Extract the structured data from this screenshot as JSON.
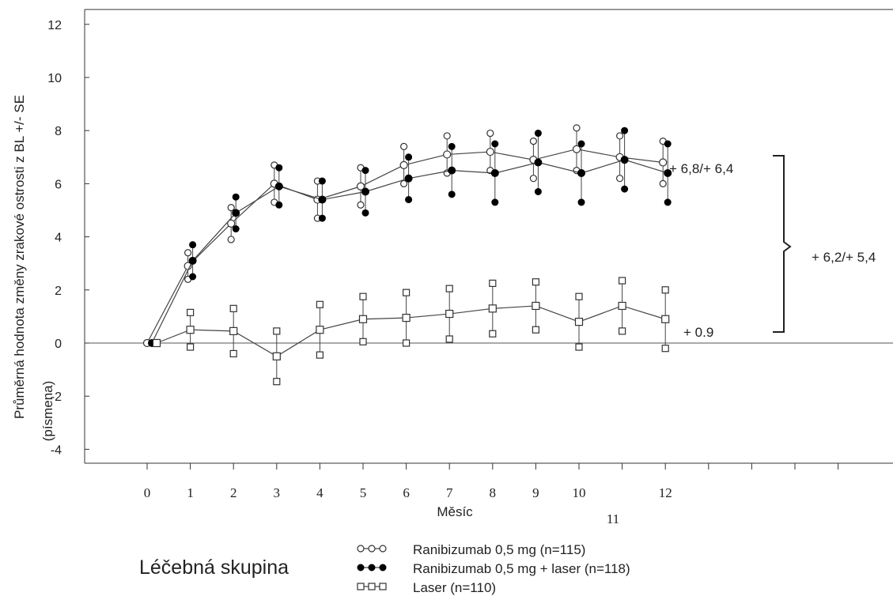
{
  "chart_data": {
    "type": "line",
    "ylabel": "Průměrná hodnota změny zrakové ostrosti z BL +/- SE",
    "ylabel_unit": "(písmena)",
    "xlabel": "Měsíc",
    "ylim": [
      -4,
      12
    ],
    "yticks": [
      "12",
      "10",
      "8",
      "6",
      "4",
      "2",
      "0",
      "-2",
      "-4"
    ],
    "xticks": [
      {
        "label": "0",
        "value": 0
      },
      {
        "label": "1",
        "value": 1
      },
      {
        "label": "2",
        "value": 2
      },
      {
        "label": "3",
        "value": 3
      },
      {
        "label": "4",
        "value": 4
      },
      {
        "label": "5",
        "value": 5
      },
      {
        "label": "6",
        "value": 6
      },
      {
        "label": "7",
        "value": 7
      },
      {
        "label": "8",
        "value": 8
      },
      {
        "label": "9",
        "value": 9
      },
      {
        "label": "10",
        "value": 10
      },
      {
        "label": "11",
        "value": 11
      },
      {
        "label": "12",
        "value": 12
      }
    ],
    "series": [
      {
        "name": "Ranibizumab 0,5 mg (n=115)",
        "marker": "open-circle",
        "x": [
          0,
          1,
          2,
          3,
          4,
          5,
          6,
          7,
          8,
          9,
          10,
          11,
          12
        ],
        "y": [
          0.0,
          2.9,
          4.5,
          6.0,
          5.4,
          5.9,
          6.7,
          7.1,
          7.2,
          6.9,
          7.3,
          7.0,
          6.8
        ],
        "err": [
          0.0,
          0.5,
          0.6,
          0.7,
          0.7,
          0.7,
          0.7,
          0.7,
          0.7,
          0.7,
          0.8,
          0.8,
          0.8
        ]
      },
      {
        "name": "Ranibizumab 0,5 mg + laser (n=118)",
        "marker": "filled-circle",
        "x": [
          0,
          1,
          2,
          3,
          4,
          5,
          6,
          7,
          8,
          9,
          10,
          11,
          12
        ],
        "y": [
          0.0,
          3.1,
          4.9,
          5.9,
          5.4,
          5.7,
          6.2,
          6.5,
          6.4,
          6.8,
          6.4,
          6.9,
          6.4
        ],
        "err": [
          0.0,
          0.6,
          0.6,
          0.7,
          0.7,
          0.8,
          0.8,
          0.9,
          1.1,
          1.1,
          1.1,
          1.1,
          1.1
        ]
      },
      {
        "name": "Laser (n=110)",
        "marker": "open-square",
        "x": [
          0,
          1,
          2,
          3,
          4,
          5,
          6,
          7,
          8,
          9,
          10,
          11,
          12
        ],
        "y": [
          0.0,
          0.5,
          0.45,
          -0.5,
          0.5,
          0.9,
          0.95,
          1.1,
          1.3,
          1.4,
          0.8,
          1.4,
          0.9
        ],
        "err": [
          0.0,
          0.65,
          0.85,
          0.95,
          0.95,
          0.85,
          0.95,
          0.95,
          0.95,
          0.9,
          0.95,
          0.95,
          1.1
        ]
      }
    ],
    "annotations": [
      {
        "text": "+ 6,8/+ 6,4",
        "anchor_x": 12,
        "anchor_y": 6.6
      },
      {
        "text": "+ 6,2/+ 5,4",
        "anchor_x": 12,
        "anchor_y": 3.8
      },
      {
        "text": "+ 0.9",
        "anchor_x": 12,
        "anchor_y": 0.5
      }
    ],
    "extra_tick_label": "11",
    "legend_title": "Léčebná skupina",
    "legend_entries": [
      "Ranibizumab 0,5 mg (n=115)",
      "Ranibizumab 0,5 mg + laser (n=118)",
      "Laser (n=110)"
    ],
    "legend_position": "bottom"
  }
}
